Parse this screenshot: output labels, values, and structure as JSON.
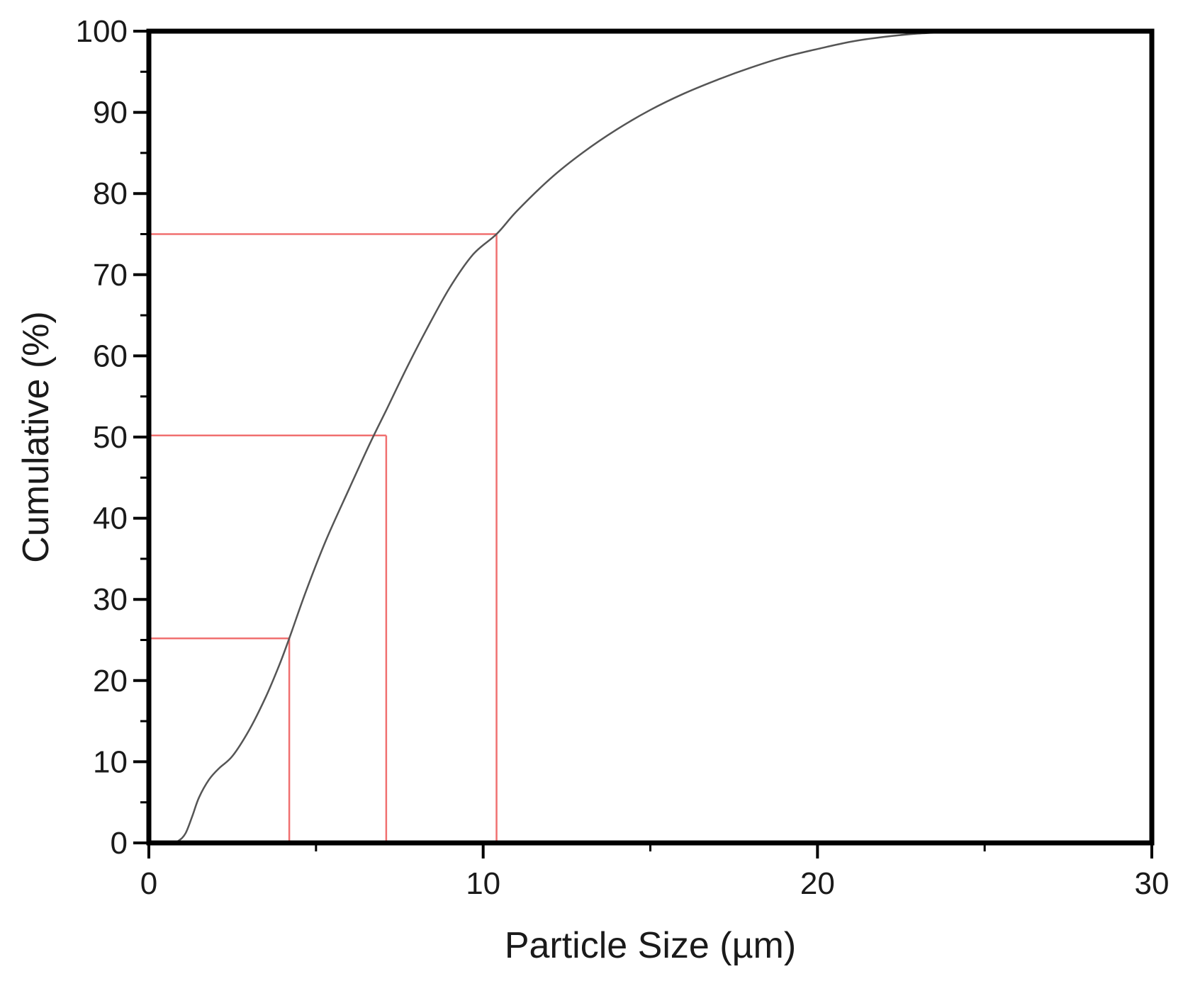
{
  "chart_data": {
    "type": "line",
    "title": "",
    "xlabel": "Particle Size (µm)",
    "ylabel": "Cumulative (%)",
    "xlim": [
      0,
      30
    ],
    "ylim": [
      0,
      100
    ],
    "x_ticks": [
      0,
      10,
      20,
      30
    ],
    "x_tick_labels": [
      "0",
      "10",
      "20",
      "30"
    ],
    "y_ticks": [
      0,
      10,
      20,
      30,
      40,
      50,
      60,
      70,
      80,
      90,
      100
    ],
    "y_tick_labels": [
      "0",
      "10",
      "20",
      "30",
      "40",
      "50",
      "60",
      "70",
      "80",
      "90",
      "100"
    ],
    "grid": false,
    "legend": "none",
    "series": [
      {
        "color": "#555555",
        "x": [
          0.7,
          0.9,
          1.1,
          1.3,
          1.5,
          1.8,
          2.1,
          2.5,
          3.0,
          3.5,
          3.9,
          4.2,
          4.7,
          5.3,
          6.0,
          6.6,
          7.1,
          7.7,
          8.3,
          9.0,
          9.7,
          10.4,
          11.0,
          12.0,
          13.0,
          14.0,
          15.0,
          16.0,
          17.0,
          18.0,
          19.0,
          20.0,
          21.0,
          22.0,
          23.0,
          24.0,
          24.5
        ],
        "y": [
          0.0,
          0.3,
          1.2,
          3.3,
          5.6,
          7.8,
          9.2,
          10.7,
          13.9,
          18.0,
          21.9,
          25.2,
          31.0,
          37.3,
          43.7,
          49.1,
          53.3,
          58.4,
          63.2,
          68.4,
          72.5,
          75.0,
          77.8,
          81.8,
          85.1,
          87.9,
          90.3,
          92.3,
          94.0,
          95.5,
          96.8,
          97.8,
          98.7,
          99.3,
          99.7,
          99.9,
          100.0
        ]
      }
    ],
    "reference_lines": {
      "color": "#f07070",
      "points": [
        {
          "x": 4.2,
          "y": 25.2
        },
        {
          "x": 7.1,
          "y": 50.2
        },
        {
          "x": 10.4,
          "y": 75.0
        }
      ]
    }
  }
}
